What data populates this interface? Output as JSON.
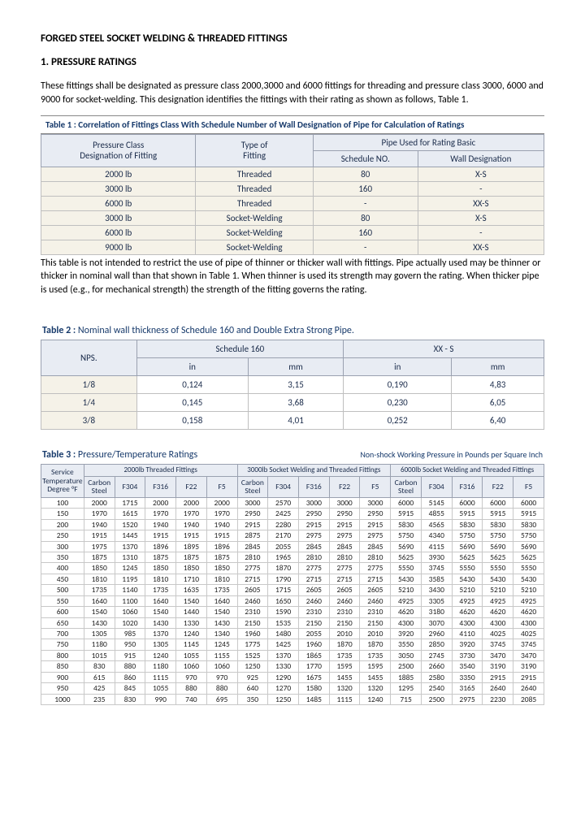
{
  "title": "FORGED STEEL SOCKET WELDING & THREADED FITTINGS",
  "section_heading": "1.  PRESSURE RATINGS",
  "intro_para": "These fittings shall be designated as pressure class 2000,3000 and 6000 fittings for threading and pressure class 3000, 6000 and 9000 for socket-welding. This designation identifies the fittings with their rating as shown as follows, Table 1.",
  "table1": {
    "caption_bold": "Table 1 :",
    "caption_rest": "Correlation of Fittings Class With Schedule Number of Wall Designation of Pipe for Calculation of Ratings",
    "head_col1_l1": "Pressure Class",
    "head_col1_l2": "Designation of Fitting",
    "head_col2_l1": "Type of",
    "head_col2_l2": "Fitting",
    "head_col3": "Pipe Used for Rating Basic",
    "head_col3a": "Schedule NO.",
    "head_col3b": "Wall Designation",
    "rows": [
      {
        "c1": "2000 lb",
        "c2": "Threaded",
        "c3": "80",
        "c4": "X-S"
      },
      {
        "c1": "3000 lb",
        "c2": "Threaded",
        "c3": "160",
        "c4": "-"
      },
      {
        "c1": "6000 lb",
        "c2": "Threaded",
        "c3": "-",
        "c4": "XX-S"
      },
      {
        "c1": "3000 lb",
        "c2": "Socket-Welding",
        "c3": "80",
        "c4": "X-S"
      },
      {
        "c1": "6000 lb",
        "c2": "Socket-Welding",
        "c3": "160",
        "c4": "-"
      },
      {
        "c1": "9000 lb",
        "c2": "Socket-Welding",
        "c3": "-",
        "c4": "XX-S"
      }
    ]
  },
  "para_after_t1": "This table is not intended to restrict the use of pipe of thinner or thicker wall with fittings. Pipe actually used may be thinner or thicker in nominal wall than that shown in Table 1. When thinner is used its strength may govern the rating. When thicker pipe is used (e.g., for mechanical strength) the strength of the fitting governs the rating.",
  "table2": {
    "caption_bold": "Table 2 :",
    "caption_rest": "Nominal wall thickness of Schedule 160 and Double Extra Strong Pipe.",
    "head_nps": "NPS.",
    "head_s160": "Schedule 160",
    "head_xxs": "XX - S",
    "head_in": "in",
    "head_mm": "mm",
    "rows": [
      {
        "nps": "1/8",
        "s160in": "0,124",
        "s160mm": "3,15",
        "xxin": "0,190",
        "xxmm": "4,83"
      },
      {
        "nps": "1/4",
        "s160in": "0,145",
        "s160mm": "3,68",
        "xxin": "0,230",
        "xxmm": "6,05"
      },
      {
        "nps": "3/8",
        "s160in": "0,158",
        "s160mm": "4,01",
        "xxin": "0,252",
        "xxmm": "6,40"
      }
    ]
  },
  "table3": {
    "caption_bold": "Table 3 :",
    "caption_rest": "Pressure/Temperature Ratings",
    "subnote": "Non-shock Working Pressure in Pounds per Square Inch",
    "svc_l1": "Service",
    "svc_l2": "Temperature",
    "svc_l3": "Degree °F",
    "grp1": "2000lb Threaded Fittings",
    "grp2": "3000lb Socket Welding and Threaded Fittings",
    "grp3": "6000lb Socket Welding and Threaded Fittings",
    "sub_cols": [
      "Carbon Steel",
      "F304",
      "F316",
      "F22",
      "F5"
    ],
    "rows": [
      {
        "t": "100",
        "a": [
          "2000",
          "1715",
          "2000",
          "2000",
          "2000"
        ],
        "b": [
          "3000",
          "2570",
          "3000",
          "3000",
          "3000"
        ],
        "c": [
          "6000",
          "5145",
          "6000",
          "6000",
          "6000"
        ]
      },
      {
        "t": "150",
        "a": [
          "1970",
          "1615",
          "1970",
          "1970",
          "1970"
        ],
        "b": [
          "2950",
          "2425",
          "2950",
          "2950",
          "2950"
        ],
        "c": [
          "5915",
          "4855",
          "5915",
          "5915",
          "5915"
        ]
      },
      {
        "t": "200",
        "a": [
          "1940",
          "1520",
          "1940",
          "1940",
          "1940"
        ],
        "b": [
          "2915",
          "2280",
          "2915",
          "2915",
          "2915"
        ],
        "c": [
          "5830",
          "4565",
          "5830",
          "5830",
          "5830"
        ]
      },
      {
        "t": "250",
        "a": [
          "1915",
          "1445",
          "1915",
          "1915",
          "1915"
        ],
        "b": [
          "2875",
          "2170",
          "2975",
          "2975",
          "2975"
        ],
        "c": [
          "5750",
          "4340",
          "5750",
          "5750",
          "5750"
        ]
      },
      {
        "t": "300",
        "a": [
          "1975",
          "1370",
          "1896",
          "1895",
          "1896"
        ],
        "b": [
          "2845",
          "2055",
          "2845",
          "2845",
          "2845"
        ],
        "c": [
          "5690",
          "4115",
          "5690",
          "5690",
          "5690"
        ]
      },
      {
        "t": "350",
        "a": [
          "1875",
          "1310",
          "1875",
          "1875",
          "1875"
        ],
        "b": [
          "2810",
          "1965",
          "2810",
          "2810",
          "2810"
        ],
        "c": [
          "5625",
          "3930",
          "5625",
          "5625",
          "5625"
        ]
      },
      {
        "t": "400",
        "a": [
          "1850",
          "1245",
          "1850",
          "1850",
          "1850"
        ],
        "b": [
          "2775",
          "1870",
          "2775",
          "2775",
          "2775"
        ],
        "c": [
          "5550",
          "3745",
          "5550",
          "5550",
          "5550"
        ]
      },
      {
        "t": "450",
        "a": [
          "1810",
          "1195",
          "1810",
          "1710",
          "1810"
        ],
        "b": [
          "2715",
          "1790",
          "2715",
          "2715",
          "2715"
        ],
        "c": [
          "5430",
          "3585",
          "5430",
          "5430",
          "5430"
        ]
      },
      {
        "t": "500",
        "a": [
          "1735",
          "1140",
          "1735",
          "1635",
          "1735"
        ],
        "b": [
          "2605",
          "1715",
          "2605",
          "2605",
          "2605"
        ],
        "c": [
          "5210",
          "3430",
          "5210",
          "5210",
          "5210"
        ]
      },
      {
        "t": "550",
        "a": [
          "1640",
          "1100",
          "1640",
          "1540",
          "1640"
        ],
        "b": [
          "2460",
          "1650",
          "2460",
          "2460",
          "2460"
        ],
        "c": [
          "4925",
          "3305",
          "4925",
          "4925",
          "4925"
        ]
      },
      {
        "t": "600",
        "a": [
          "1540",
          "1060",
          "1540",
          "1440",
          "1540"
        ],
        "b": [
          "2310",
          "1590",
          "2310",
          "2310",
          "2310"
        ],
        "c": [
          "4620",
          "3180",
          "4620",
          "4620",
          "4620"
        ]
      },
      {
        "t": "650",
        "a": [
          "1430",
          "1020",
          "1430",
          "1330",
          "1430"
        ],
        "b": [
          "2150",
          "1535",
          "2150",
          "2150",
          "2150"
        ],
        "c": [
          "4300",
          "3070",
          "4300",
          "4300",
          "4300"
        ]
      },
      {
        "t": "700",
        "a": [
          "1305",
          "985",
          "1370",
          "1240",
          "1340"
        ],
        "b": [
          "1960",
          "1480",
          "2055",
          "2010",
          "2010"
        ],
        "c": [
          "3920",
          "2960",
          "4110",
          "4025",
          "4025"
        ]
      },
      {
        "t": "750",
        "a": [
          "1180",
          "950",
          "1305",
          "1145",
          "1245"
        ],
        "b": [
          "1775",
          "1425",
          "1960",
          "1870",
          "1870"
        ],
        "c": [
          "3550",
          "2850",
          "3920",
          "3745",
          "3745"
        ]
      },
      {
        "t": "800",
        "a": [
          "1015",
          "915",
          "1240",
          "1055",
          "1155"
        ],
        "b": [
          "1525",
          "1370",
          "1865",
          "1735",
          "1735"
        ],
        "c": [
          "3050",
          "2745",
          "3730",
          "3470",
          "3470"
        ]
      },
      {
        "t": "850",
        "a": [
          "830",
          "880",
          "1180",
          "1060",
          "1060"
        ],
        "b": [
          "1250",
          "1330",
          "1770",
          "1595",
          "1595"
        ],
        "c": [
          "2500",
          "2660",
          "3540",
          "3190",
          "3190"
        ]
      },
      {
        "t": "900",
        "a": [
          "615",
          "860",
          "1115",
          "970",
          "970"
        ],
        "b": [
          "925",
          "1290",
          "1675",
          "1455",
          "1455"
        ],
        "c": [
          "1885",
          "2580",
          "3350",
          "2915",
          "2915"
        ]
      },
      {
        "t": "950",
        "a": [
          "425",
          "845",
          "1055",
          "880",
          "880"
        ],
        "b": [
          "640",
          "1270",
          "1580",
          "1320",
          "1320"
        ],
        "c": [
          "1295",
          "2540",
          "3165",
          "2640",
          "2640"
        ]
      },
      {
        "t": "1000",
        "a": [
          "235",
          "830",
          "990",
          "740",
          "695"
        ],
        "b": [
          "350",
          "1250",
          "1485",
          "1115",
          "1240"
        ],
        "c": [
          "715",
          "2500",
          "2975",
          "2230",
          "2085"
        ]
      }
    ]
  }
}
